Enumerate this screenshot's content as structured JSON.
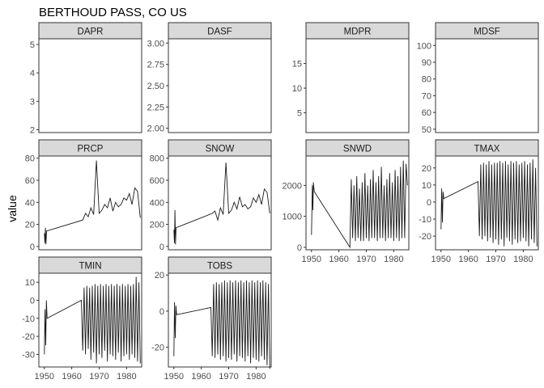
{
  "chart_data": {
    "type": "line",
    "title": "BERTHOUD PASS, CO US",
    "ylabel": "value",
    "xlabel": "",
    "color": "#1a1a1a",
    "strip_color": "#d9d9d9",
    "facet_scales": "free",
    "grid": false,
    "panels": [
      {
        "name": "DAPR",
        "xlim": null,
        "ylim": [
          1.9,
          5.2
        ],
        "yticks": [
          2,
          3,
          4,
          5
        ],
        "ytick_labels": [
          "2",
          "3",
          "4",
          "5"
        ],
        "xticks": [],
        "xtick_labels": [],
        "x": [],
        "y": []
      },
      {
        "name": "DASF",
        "xlim": null,
        "ylim": [
          1.95,
          3.05
        ],
        "yticks": [
          2.0,
          2.25,
          2.5,
          2.75,
          3.0
        ],
        "ytick_labels": [
          "2.00",
          "2.25",
          "2.50",
          "2.75",
          "3.00"
        ],
        "xticks": [],
        "xtick_labels": [],
        "x": [],
        "y": []
      },
      {
        "name": "MDPR",
        "xlim": null,
        "ylim": [
          1,
          20
        ],
        "yticks": [
          5,
          10,
          15
        ],
        "ytick_labels": [
          "5",
          "10",
          "15"
        ],
        "xticks": [],
        "xtick_labels": [],
        "x": [],
        "y": []
      },
      {
        "name": "MDSF",
        "xlim": null,
        "ylim": [
          48,
          104
        ],
        "yticks": [
          50,
          60,
          70,
          80,
          90,
          100
        ],
        "ytick_labels": [
          "50",
          "60",
          "70",
          "80",
          "90",
          "100"
        ],
        "xticks": [],
        "xtick_labels": [],
        "x": [],
        "y": []
      },
      {
        "name": "PRCP",
        "xlim": [
          1948,
          1985.5
        ],
        "ylim": [
          -3,
          82
        ],
        "yticks": [
          0,
          20,
          40,
          60,
          80
        ],
        "ytick_labels": [
          "0",
          "20",
          "40",
          "60",
          "80"
        ],
        "xticks": [],
        "xtick_labels": [],
        "x": [
          1950.0,
          1950.2,
          1950.4,
          1950.6,
          1950.8,
          1964.0,
          1965.0,
          1966.0,
          1967.0,
          1968.0,
          1969.0,
          1970.0,
          1971.0,
          1972.0,
          1973.0,
          1974.0,
          1975.0,
          1976.0,
          1977.0,
          1978.0,
          1979.0,
          1980.0,
          1981.0,
          1982.0,
          1983.0,
          1984.0,
          1985.0
        ],
        "y": [
          12,
          3,
          17,
          2,
          14,
          24,
          30,
          27,
          35,
          29,
          78,
          30,
          33,
          38,
          35,
          44,
          32,
          40,
          36,
          38,
          44,
          42,
          48,
          38,
          53,
          50,
          26
        ]
      },
      {
        "name": "SNOW",
        "xlim": [
          1948,
          1985.5
        ],
        "ylim": [
          -30,
          820
        ],
        "yticks": [
          0,
          200,
          400,
          600,
          800
        ],
        "ytick_labels": [
          "0",
          "200",
          "400",
          "600",
          "800"
        ],
        "xticks": [],
        "xtick_labels": [],
        "x": [
          1950.0,
          1950.2,
          1950.4,
          1950.6,
          1950.8,
          1964.0,
          1965.0,
          1966.0,
          1967.0,
          1968.0,
          1969.0,
          1970.0,
          1971.0,
          1972.0,
          1973.0,
          1974.0,
          1975.0,
          1976.0,
          1977.0,
          1978.0,
          1979.0,
          1980.0,
          1981.0,
          1982.0,
          1983.0,
          1984.0,
          1985.0
        ],
        "y": [
          150,
          30,
          330,
          20,
          170,
          300,
          320,
          240,
          350,
          290,
          760,
          300,
          330,
          400,
          340,
          450,
          360,
          380,
          340,
          360,
          440,
          400,
          470,
          380,
          520,
          490,
          300
        ]
      },
      {
        "name": "SNWD",
        "xlim": [
          1948,
          1985.5
        ],
        "ylim": [
          -80,
          2950
        ],
        "yticks": [
          0,
          1000,
          2000
        ],
        "ytick_labels": [
          "0",
          "1000",
          "2000"
        ],
        "xticks": [
          1950,
          1960,
          1970,
          1980
        ],
        "xtick_labels": [
          "1950",
          "1960",
          "1970",
          "1980"
        ],
        "x": [
          1950.0,
          1950.3,
          1950.5,
          1950.7,
          1951.0,
          1964.0,
          1964.5,
          1965.0,
          1965.5,
          1966.0,
          1966.5,
          1967.0,
          1967.5,
          1968.0,
          1968.5,
          1969.0,
          1969.5,
          1970.0,
          1970.5,
          1971.0,
          1971.5,
          1972.0,
          1972.5,
          1973.0,
          1973.5,
          1974.0,
          1974.5,
          1975.0,
          1975.5,
          1976.0,
          1976.5,
          1977.0,
          1977.5,
          1978.0,
          1978.5,
          1979.0,
          1979.5,
          1980.0,
          1980.5,
          1981.0,
          1981.5,
          1982.0,
          1982.5,
          1983.0,
          1983.5,
          1984.0,
          1984.5,
          1985.0
        ],
        "y": [
          400,
          2000,
          1200,
          2100,
          1800,
          0,
          2200,
          300,
          2000,
          200,
          2300,
          300,
          1900,
          200,
          2100,
          200,
          2400,
          300,
          2000,
          200,
          2200,
          300,
          2500,
          300,
          2100,
          200,
          2300,
          300,
          2600,
          300,
          2000,
          200,
          2200,
          300,
          2400,
          300,
          2100,
          200,
          2500,
          300,
          2300,
          200,
          2600,
          300,
          2800,
          300,
          2700,
          2000
        ]
      },
      {
        "name": "TMAX",
        "xlim": [
          1948,
          1985.5
        ],
        "ylim": [
          -28,
          27
        ],
        "yticks": [
          -20,
          -10,
          0,
          10,
          20
        ],
        "ytick_labels": [
          "-20",
          "-10",
          "0",
          "10",
          "20"
        ],
        "xticks": [
          1950,
          1960,
          1970,
          1980
        ],
        "xtick_labels": [
          "1950",
          "1960",
          "1970",
          "1980"
        ],
        "x": [
          1950.0,
          1950.25,
          1950.5,
          1950.75,
          1951.0,
          1963.5,
          1964.0,
          1964.5,
          1965.0,
          1965.5,
          1966.0,
          1966.5,
          1967.0,
          1967.5,
          1968.0,
          1968.5,
          1969.0,
          1969.5,
          1970.0,
          1970.5,
          1971.0,
          1971.5,
          1972.0,
          1972.5,
          1973.0,
          1973.5,
          1974.0,
          1974.5,
          1975.0,
          1975.5,
          1976.0,
          1976.5,
          1977.0,
          1977.5,
          1978.0,
          1978.5,
          1979.0,
          1979.5,
          1980.0,
          1980.5,
          1981.0,
          1981.5,
          1982.0,
          1982.5,
          1983.0,
          1983.5,
          1984.0,
          1984.5,
          1985.0
        ],
        "y": [
          -16,
          8,
          -12,
          6,
          2,
          12,
          -20,
          22,
          -22,
          23,
          -20,
          22,
          -23,
          24,
          -21,
          22,
          -24,
          23,
          -22,
          23,
          -25,
          24,
          -22,
          23,
          -26,
          24,
          -21,
          22,
          -23,
          24,
          -25,
          23,
          -22,
          24,
          -24,
          22,
          -23,
          23,
          -21,
          24,
          -23,
          22,
          -26,
          23,
          -22,
          25,
          -24,
          20,
          -26
        ]
      },
      {
        "name": "TMIN",
        "xlim": [
          1948,
          1985.5
        ],
        "ylim": [
          -37,
          15
        ],
        "yticks": [
          -30,
          -20,
          -10,
          0,
          10
        ],
        "ytick_labels": [
          "-30",
          "-20",
          "-10",
          "0",
          "10"
        ],
        "xticks": [
          1950,
          1960,
          1970,
          1980
        ],
        "xtick_labels": [
          "1950",
          "1960",
          "1970",
          "1980"
        ],
        "x": [
          1950.0,
          1950.25,
          1950.5,
          1950.75,
          1951.0,
          1963.5,
          1964.0,
          1964.5,
          1965.0,
          1965.5,
          1966.0,
          1966.5,
          1967.0,
          1967.5,
          1968.0,
          1968.5,
          1969.0,
          1969.5,
          1970.0,
          1970.5,
          1971.0,
          1971.5,
          1972.0,
          1972.5,
          1973.0,
          1973.5,
          1974.0,
          1974.5,
          1975.0,
          1975.5,
          1976.0,
          1976.5,
          1977.0,
          1977.5,
          1978.0,
          1978.5,
          1979.0,
          1979.5,
          1980.0,
          1980.5,
          1981.0,
          1981.5,
          1982.0,
          1982.5,
          1983.0,
          1983.5,
          1984.0,
          1984.5,
          1985.0
        ],
        "y": [
          -30,
          -5,
          -25,
          0,
          -10,
          0,
          -28,
          7,
          -30,
          8,
          -27,
          7,
          -33,
          8,
          -29,
          9,
          -35,
          8,
          -30,
          9,
          -32,
          8,
          -28,
          9,
          -34,
          8,
          -30,
          9,
          -31,
          8,
          -33,
          9,
          -29,
          8,
          -34,
          9,
          -31,
          8,
          -30,
          9,
          -33,
          8,
          -30,
          9,
          -32,
          13,
          -34,
          10,
          -35
        ]
      },
      {
        "name": "TOBS",
        "xlim": [
          1948,
          1985.5
        ],
        "ylim": [
          -31,
          21
        ],
        "yticks": [
          -20,
          0,
          20
        ],
        "ytick_labels": [
          "-20",
          "0",
          "20"
        ],
        "xticks": [
          1950,
          1960,
          1970,
          1980
        ],
        "xtick_labels": [
          "1950",
          "1960",
          "1970",
          "1980"
        ],
        "x": [
          1950.0,
          1950.25,
          1950.5,
          1950.75,
          1951.0,
          1963.5,
          1964.0,
          1964.5,
          1965.0,
          1965.5,
          1966.0,
          1966.5,
          1967.0,
          1967.5,
          1968.0,
          1968.5,
          1969.0,
          1969.5,
          1970.0,
          1970.5,
          1971.0,
          1971.5,
          1972.0,
          1972.5,
          1973.0,
          1973.5,
          1974.0,
          1974.5,
          1975.0,
          1975.5,
          1976.0,
          1976.5,
          1977.0,
          1977.5,
          1978.0,
          1978.5,
          1979.0,
          1979.5,
          1980.0,
          1980.5,
          1981.0,
          1981.5,
          1982.0,
          1982.5,
          1983.0,
          1983.5,
          1984.0,
          1984.5,
          1985.0
        ],
        "y": [
          -25,
          5,
          -15,
          3,
          -2,
          2,
          -25,
          15,
          -26,
          16,
          -24,
          15,
          -27,
          16,
          -25,
          17,
          -28,
          16,
          -26,
          17,
          -27,
          16,
          -24,
          17,
          -28,
          16,
          -25,
          17,
          -26,
          16,
          -28,
          17,
          -25,
          16,
          -29,
          17,
          -26,
          16,
          -27,
          17,
          -28,
          16,
          -25,
          17,
          -27,
          16,
          -30,
          15,
          -32
        ]
      }
    ]
  }
}
